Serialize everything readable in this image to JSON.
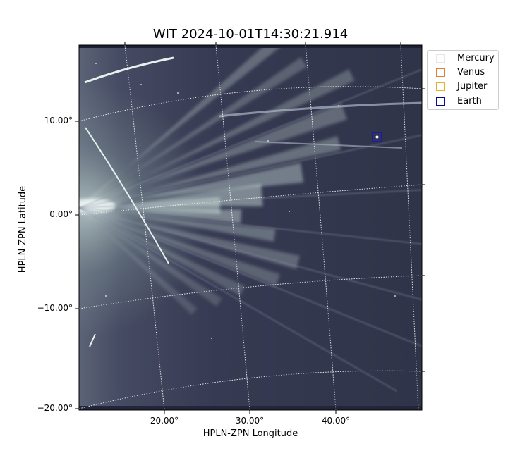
{
  "title": "WIT 2024-10-01T14:30:21.914",
  "axes": {
    "xlabel": "HPLN-ZPN Longitude",
    "ylabel": "HPLN-ZPN Latitude",
    "x_ticks": [
      "20.00°",
      "30.00°",
      "40.00°"
    ],
    "y_ticks": [
      "10.00°",
      "0.00°",
      "−10.00°",
      "−20.00°"
    ]
  },
  "legend": {
    "items": [
      {
        "name": "Mercury",
        "color": "#e6e6e6"
      },
      {
        "name": "Venus",
        "color": "#d9823b"
      },
      {
        "name": "Jupiter",
        "color": "#e3b424"
      },
      {
        "name": "Earth",
        "color": "#0a0a8c"
      }
    ]
  },
  "colors": {
    "sky": "#34384f",
    "streamer": "#dfeee9",
    "grid": "#ffffff",
    "earth_marker": "#1010dd"
  }
}
